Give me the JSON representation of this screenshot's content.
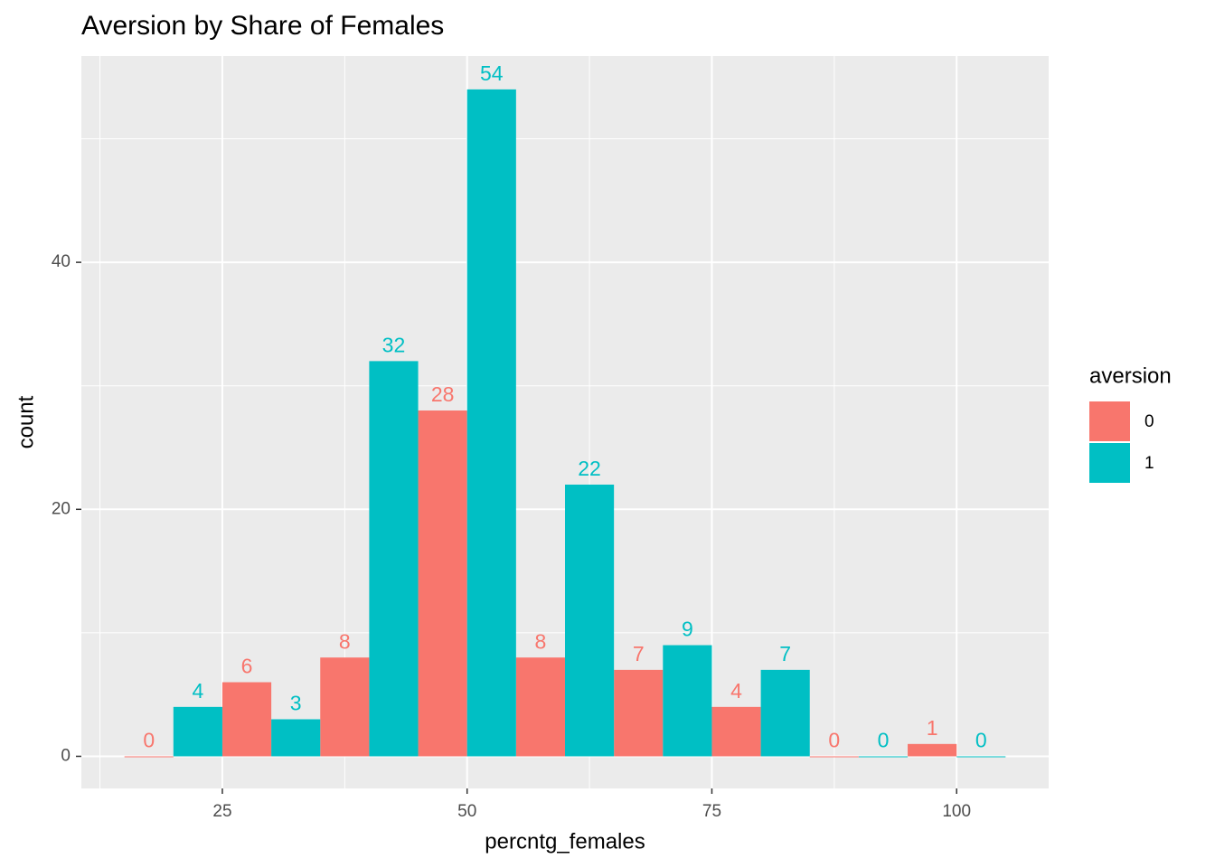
{
  "chart_data": {
    "type": "histogram",
    "position": "dodge",
    "title": "Aversion by Share of Females",
    "x_label": "percntg_females",
    "y_label": "count",
    "legend_title": "aversion",
    "bins": [
      15,
      25,
      35,
      45,
      55,
      65,
      75,
      85,
      95,
      105
    ],
    "series": [
      {
        "name": "0",
        "color": "#f8766d",
        "values": [
          0,
          6,
          8,
          28,
          8,
          7,
          4,
          0,
          1
        ]
      },
      {
        "name": "1",
        "color": "#00bfc4",
        "values": [
          4,
          3,
          32,
          54,
          22,
          9,
          7,
          0,
          0
        ]
      }
    ],
    "xlim": [
      10.6,
      109.4
    ],
    "ylim": [
      -2.6,
      56.7
    ],
    "xticks": [
      25,
      50,
      75,
      100
    ],
    "yticks": [
      0,
      20,
      40
    ],
    "x_minor_ticks": [
      12.5,
      37.5,
      62.5,
      87.5
    ],
    "y_minor_ticks": [
      10,
      30,
      50
    ],
    "grid": true,
    "legend_position": "right"
  }
}
